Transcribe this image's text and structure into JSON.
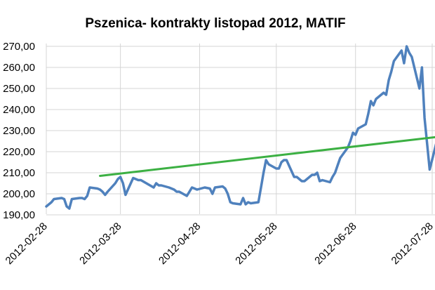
{
  "chart_data": {
    "type": "line",
    "title": "Pszenica- kontrakty listopad 2012, MATIF",
    "xlabel": "",
    "ylabel": "",
    "ylim": [
      190,
      270
    ],
    "y_ticks": [
      "190,00",
      "200,00",
      "210,00",
      "220,00",
      "230,00",
      "240,00",
      "250,00",
      "260,00",
      "270,00"
    ],
    "x_ticks": [
      "2012-02-28",
      "2012-03-28",
      "2012-04-28",
      "2012-05-28",
      "2012-06-28",
      "2012-07-28"
    ],
    "grid": true,
    "legend": "none",
    "series": [
      {
        "role": "price",
        "color": "#4f81bd",
        "x": [
          "2012-02-28",
          "2012-03-01",
          "2012-03-02",
          "2012-03-05",
          "2012-03-06",
          "2012-03-07",
          "2012-03-08",
          "2012-03-09",
          "2012-03-12",
          "2012-03-13",
          "2012-03-14",
          "2012-03-15",
          "2012-03-16",
          "2012-03-19",
          "2012-03-20",
          "2012-03-21",
          "2012-03-22",
          "2012-03-23",
          "2012-03-26",
          "2012-03-27",
          "2012-03-28",
          "2012-03-29",
          "2012-03-30",
          "2012-04-02",
          "2012-04-03",
          "2012-04-04",
          "2012-04-05",
          "2012-04-10",
          "2012-04-11",
          "2012-04-12",
          "2012-04-13",
          "2012-04-16",
          "2012-04-17",
          "2012-04-18",
          "2012-04-19",
          "2012-04-20",
          "2012-04-23",
          "2012-04-24",
          "2012-04-25",
          "2012-04-26",
          "2012-04-27",
          "2012-04-30",
          "2012-05-02",
          "2012-05-03",
          "2012-05-04",
          "2012-05-07",
          "2012-05-08",
          "2012-05-09",
          "2012-05-10",
          "2012-05-11",
          "2012-05-14",
          "2012-05-15",
          "2012-05-16",
          "2012-05-17",
          "2012-05-18",
          "2012-05-21",
          "2012-05-22",
          "2012-05-23",
          "2012-05-24",
          "2012-05-25",
          "2012-05-28",
          "2012-05-29",
          "2012-05-30",
          "2012-05-31",
          "2012-06-01",
          "2012-06-04",
          "2012-06-05",
          "2012-06-06",
          "2012-06-07",
          "2012-06-08",
          "2012-06-11",
          "2012-06-12",
          "2012-06-13",
          "2012-06-14",
          "2012-06-15",
          "2012-06-18",
          "2012-06-19",
          "2012-06-20",
          "2012-06-21",
          "2012-06-22",
          "2012-06-25",
          "2012-06-26",
          "2012-06-27",
          "2012-06-28",
          "2012-06-29",
          "2012-07-02",
          "2012-07-03",
          "2012-07-04",
          "2012-07-05",
          "2012-07-06",
          "2012-07-09",
          "2012-07-10",
          "2012-07-11",
          "2012-07-12",
          "2012-07-13",
          "2012-07-16",
          "2012-07-17",
          "2012-07-18",
          "2012-07-19",
          "2012-07-20",
          "2012-07-23",
          "2012-07-24",
          "2012-07-25",
          "2012-07-26",
          "2012-07-27",
          "2012-07-30"
        ],
        "values": [
          194,
          196,
          197.5,
          198,
          197.5,
          194,
          193,
          197.5,
          198,
          198,
          197.5,
          199,
          203,
          202.5,
          202,
          201,
          199.5,
          201,
          205,
          207,
          208,
          205,
          199.5,
          207.5,
          207,
          206.5,
          206.5,
          203,
          205,
          204,
          204,
          203,
          202.5,
          202,
          201,
          201,
          199,
          201,
          203,
          202.5,
          202,
          203,
          202.5,
          200,
          203,
          203.5,
          202.5,
          200,
          196,
          195.5,
          195,
          198,
          195,
          196,
          195.5,
          196,
          203,
          210,
          216,
          214,
          212,
          212,
          215,
          216,
          216,
          208,
          208,
          207,
          206,
          206,
          209,
          209,
          210,
          206,
          206.5,
          205.5,
          208,
          210,
          213.5,
          217,
          222,
          225,
          229,
          228,
          231,
          233,
          238,
          244,
          242,
          245,
          248,
          247,
          254,
          258,
          263,
          268,
          262,
          270,
          267,
          265,
          250,
          260,
          236,
          224,
          211.5,
          226
        ],
        "scale": "#4f81bd"
      },
      {
        "role": "trend",
        "color": "#3cb043",
        "x": [
          "2012-03-20",
          "2012-07-30"
        ],
        "values": [
          208.5,
          227
        ]
      }
    ]
  }
}
